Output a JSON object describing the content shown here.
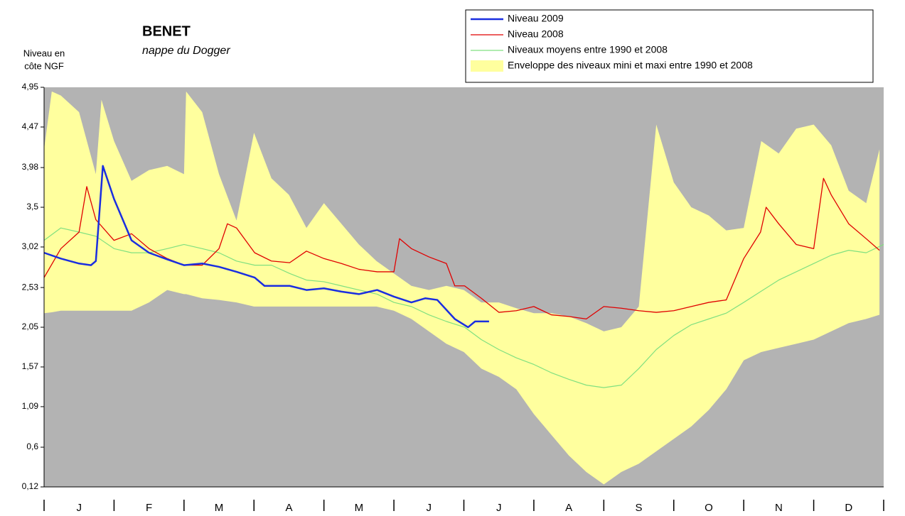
{
  "chart_data": {
    "type": "line",
    "title": "BENET",
    "subtitle": "nappe du Dogger",
    "y_label": [
      "Niveau en",
      "côte NGF"
    ],
    "categories": [
      "J",
      "F",
      "M",
      "A",
      "M",
      "J",
      "J",
      "A",
      "S",
      "O",
      "N",
      "D"
    ],
    "xlim": [
      0,
      12
    ],
    "ylim": [
      0.12,
      4.95
    ],
    "yticks": [
      {
        "value": 0.12,
        "label": "0,12"
      },
      {
        "value": 0.6,
        "label": "0,6"
      },
      {
        "value": 1.09,
        "label": "1,09"
      },
      {
        "value": 1.57,
        "label": "1,57"
      },
      {
        "value": 2.05,
        "label": "2,05"
      },
      {
        "value": 2.53,
        "label": "2,53"
      },
      {
        "value": 3.02,
        "label": "3,02"
      },
      {
        "value": 3.5,
        "label": "3,5"
      },
      {
        "value": 3.98,
        "label": "3,98"
      },
      {
        "value": 4.47,
        "label": "4,47"
      },
      {
        "value": 4.95,
        "label": "4,95"
      }
    ],
    "background": "#b3b3b3",
    "series": [
      {
        "name": "Niveau 2009",
        "color": "#1a2ee0",
        "width": 2.5,
        "x": [
          0,
          0.24,
          0.5,
          0.67,
          0.74,
          0.84,
          1.0,
          1.25,
          1.5,
          1.76,
          2.0,
          2.26,
          2.5,
          2.75,
          3.01,
          3.15,
          3.51,
          3.75,
          4.0,
          4.25,
          4.5,
          4.76,
          5.0,
          5.25,
          5.45,
          5.62,
          5.87,
          6.06,
          6.16,
          6.36
        ],
        "values": [
          2.95,
          2.88,
          2.82,
          2.8,
          2.85,
          4.0,
          3.6,
          3.1,
          2.95,
          2.87,
          2.8,
          2.82,
          2.78,
          2.72,
          2.65,
          2.55,
          2.55,
          2.5,
          2.52,
          2.48,
          2.45,
          2.5,
          2.42,
          2.35,
          2.4,
          2.38,
          2.15,
          2.05,
          2.12,
          2.12
        ]
      },
      {
        "name": "Niveau 2008",
        "color": "#e00000",
        "width": 1.3,
        "x": [
          0,
          0.24,
          0.5,
          0.61,
          0.74,
          1.0,
          1.25,
          1.5,
          1.76,
          2.0,
          2.26,
          2.5,
          2.62,
          2.75,
          3.01,
          3.25,
          3.51,
          3.75,
          4.0,
          4.25,
          4.5,
          4.76,
          5.0,
          5.08,
          5.25,
          5.5,
          5.75,
          5.87,
          6.01,
          6.25,
          6.5,
          6.75,
          7.0,
          7.25,
          7.5,
          7.75,
          8.0,
          8.25,
          8.5,
          8.75,
          9.0,
          9.25,
          9.5,
          9.75,
          10.0,
          10.24,
          10.32,
          10.5,
          10.75,
          11.0,
          11.14,
          11.25,
          11.5,
          11.75,
          11.94
        ],
        "values": [
          2.65,
          3.0,
          3.2,
          3.75,
          3.35,
          3.1,
          3.18,
          3.0,
          2.88,
          2.8,
          2.8,
          3.0,
          3.3,
          3.25,
          2.95,
          2.85,
          2.83,
          2.97,
          2.88,
          2.82,
          2.75,
          2.72,
          2.72,
          3.12,
          3.0,
          2.9,
          2.82,
          2.55,
          2.55,
          2.4,
          2.23,
          2.25,
          2.3,
          2.2,
          2.18,
          2.15,
          2.3,
          2.28,
          2.25,
          2.23,
          2.25,
          2.3,
          2.35,
          2.38,
          2.88,
          3.2,
          3.5,
          3.3,
          3.05,
          3.0,
          3.85,
          3.65,
          3.3,
          3.12,
          2.98
        ]
      },
      {
        "name": "Niveaux moyens entre 1990 et 2008",
        "color": "#80e080",
        "width": 1.2,
        "x": [
          0,
          0.24,
          0.5,
          0.74,
          1.0,
          1.25,
          1.5,
          1.76,
          2.0,
          2.26,
          2.5,
          2.75,
          3.01,
          3.25,
          3.51,
          3.75,
          4.0,
          4.25,
          4.5,
          4.76,
          5.0,
          5.25,
          5.5,
          5.75,
          6.01,
          6.25,
          6.5,
          6.75,
          7.0,
          7.25,
          7.5,
          7.75,
          8.0,
          8.25,
          8.5,
          8.75,
          9.0,
          9.25,
          9.5,
          9.75,
          10.0,
          10.24,
          10.5,
          10.75,
          11.0,
          11.25,
          11.5,
          11.75,
          12
        ],
        "values": [
          3.1,
          3.25,
          3.2,
          3.15,
          3.0,
          2.95,
          2.95,
          3.0,
          3.05,
          3.0,
          2.95,
          2.85,
          2.8,
          2.8,
          2.7,
          2.62,
          2.6,
          2.55,
          2.5,
          2.45,
          2.35,
          2.3,
          2.2,
          2.12,
          2.05,
          1.9,
          1.78,
          1.68,
          1.6,
          1.5,
          1.42,
          1.35,
          1.32,
          1.35,
          1.55,
          1.78,
          1.95,
          2.08,
          2.15,
          2.22,
          2.35,
          2.48,
          2.62,
          2.72,
          2.82,
          2.92,
          2.98,
          2.95,
          3.05
        ]
      },
      {
        "name": "Enveloppe des niveaux mini et maxi entre 1990 et 2008",
        "color": "#ffff9e",
        "band": true,
        "x": [
          0,
          0.11,
          0.24,
          0.5,
          0.74,
          0.82,
          1.0,
          1.25,
          1.5,
          1.76,
          2.0,
          2.03,
          2.26,
          2.5,
          2.75,
          3.0,
          3.25,
          3.5,
          3.75,
          4.0,
          4.25,
          4.5,
          4.75,
          5.0,
          5.25,
          5.5,
          5.75,
          6.0,
          6.25,
          6.5,
          6.75,
          7.0,
          7.25,
          7.5,
          7.75,
          8.0,
          8.25,
          8.5,
          8.75,
          9.0,
          9.25,
          9.5,
          9.75,
          10.0,
          10.25,
          10.5,
          10.75,
          11.0,
          11.25,
          11.5,
          11.75,
          11.94
        ],
        "values": [
          4.2,
          4.9,
          4.85,
          4.65,
          3.9,
          4.8,
          4.3,
          3.82,
          3.95,
          4.0,
          3.9,
          4.9,
          4.65,
          3.9,
          3.34,
          4.4,
          3.85,
          3.65,
          3.25,
          3.55,
          3.3,
          3.05,
          2.85,
          2.7,
          2.55,
          2.5,
          2.55,
          2.5,
          2.35,
          2.35,
          2.28,
          2.22,
          2.22,
          2.18,
          2.1,
          2.0,
          2.05,
          2.3,
          4.5,
          3.8,
          3.5,
          3.4,
          3.22,
          3.25,
          4.3,
          4.15,
          4.45,
          4.5,
          4.25,
          3.7,
          3.55,
          4.2
        ],
        "lower": [
          2.22,
          2.23,
          2.25,
          2.25,
          2.25,
          2.25,
          2.25,
          2.25,
          2.35,
          2.5,
          2.45,
          2.45,
          2.4,
          2.38,
          2.35,
          2.3,
          2.3,
          2.3,
          2.3,
          2.3,
          2.3,
          2.3,
          2.3,
          2.25,
          2.15,
          2.0,
          1.85,
          1.75,
          1.55,
          1.45,
          1.3,
          1.0,
          0.75,
          0.5,
          0.3,
          0.15,
          0.3,
          0.4,
          0.55,
          0.7,
          0.85,
          1.05,
          1.3,
          1.65,
          1.75,
          1.8,
          1.85,
          1.9,
          2.0,
          2.1,
          2.15,
          2.2
        ]
      }
    ]
  }
}
